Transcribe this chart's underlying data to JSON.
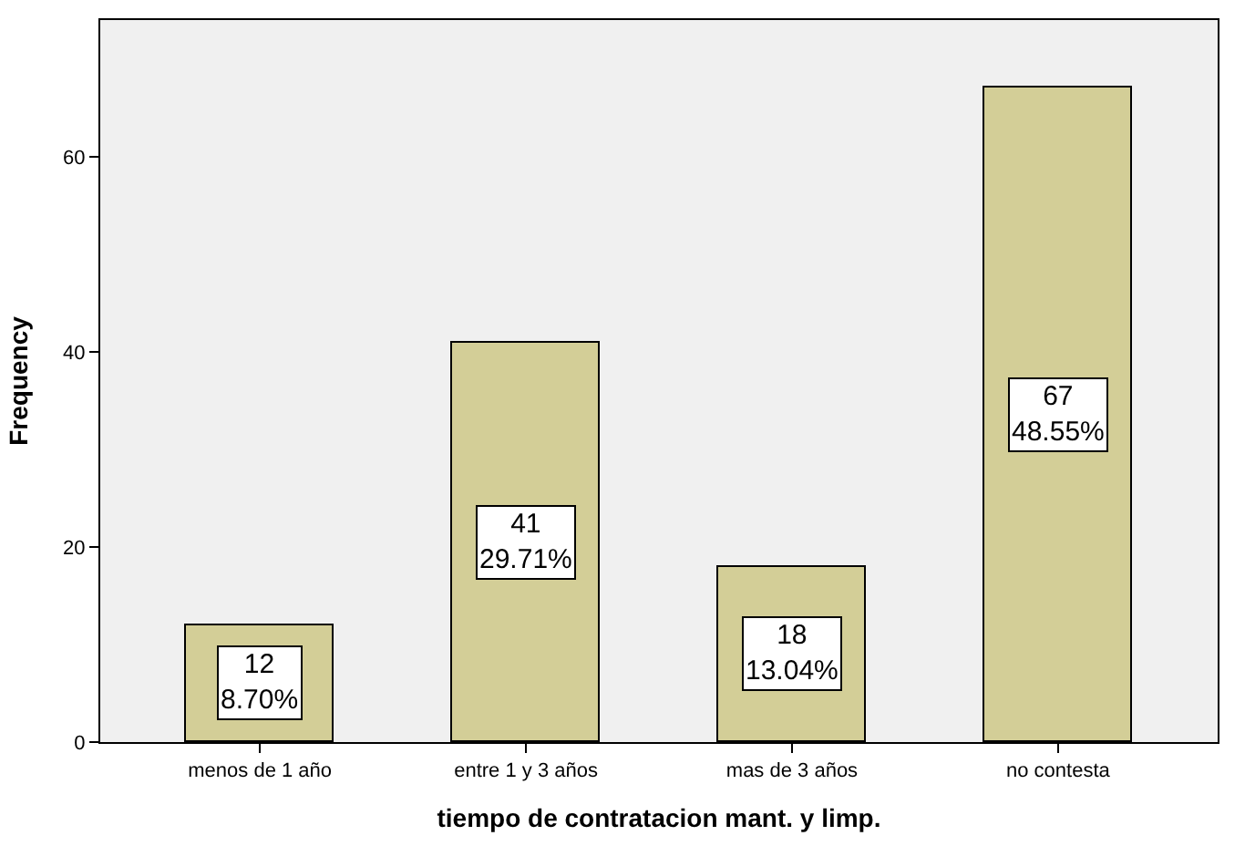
{
  "chart_data": {
    "type": "bar",
    "xlabel": "tiempo de contratacion mant. y limp.",
    "ylabel": "Frequency",
    "categories": [
      "menos de 1 año",
      "entre 1 y 3 años",
      "mas de 3 años",
      "no contesta"
    ],
    "values": [
      12,
      41,
      18,
      67
    ],
    "color": "#d3ce97",
    "value_labels": [
      "12\n8.70%",
      "41\n29.71%",
      "18\n13.04%",
      "67\n48.55%"
    ],
    "ylim": [
      0,
      74
    ],
    "yticks": [
      0,
      20,
      40,
      60
    ],
    "grid": false,
    "legend": false
  }
}
